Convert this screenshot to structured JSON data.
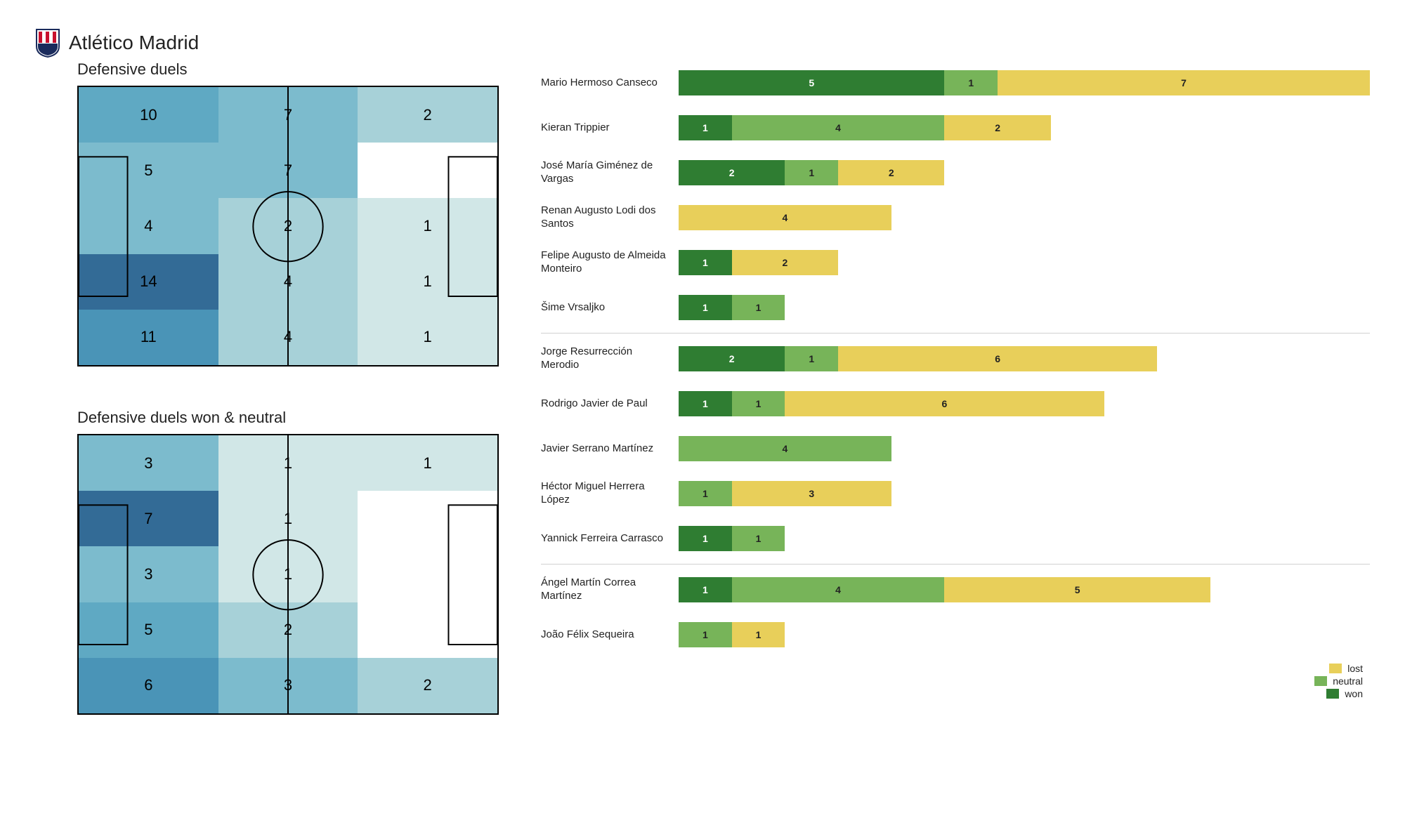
{
  "team": "Atlético Madrid",
  "colors": {
    "won": "#2f7d32",
    "neutral": "#77b459",
    "lost": "#e8cf5a",
    "heatmap_scale": [
      "#ffffff",
      "#d1e7e7",
      "#a7d1d8",
      "#7cbbcd",
      "#5fa9c3",
      "#4a94b7",
      "#3c7fa8",
      "#336b96"
    ]
  },
  "heatmaps": [
    {
      "title": "Defensive duels",
      "grid": [
        [
          10,
          7,
          2
        ],
        [
          5,
          7,
          null
        ],
        [
          4,
          2,
          1
        ],
        [
          14,
          4,
          1
        ],
        [
          11,
          4,
          1
        ]
      ],
      "cell_colors": [
        [
          "#5fa9c3",
          "#7cbbcd",
          "#a7d1d8"
        ],
        [
          "#7cbbcd",
          "#7cbbcd",
          "#ffffff"
        ],
        [
          "#7cbbcd",
          "#a7d1d8",
          "#d1e7e7"
        ],
        [
          "#336b96",
          "#a7d1d8",
          "#d1e7e7"
        ],
        [
          "#4a94b7",
          "#a7d1d8",
          "#d1e7e7"
        ]
      ]
    },
    {
      "title": "Defensive duels won & neutral",
      "grid": [
        [
          3,
          1,
          1
        ],
        [
          7,
          1,
          null
        ],
        [
          3,
          1,
          null
        ],
        [
          5,
          2,
          null
        ],
        [
          6,
          3,
          2
        ]
      ],
      "cell_colors": [
        [
          "#7cbbcd",
          "#d1e7e7",
          "#d1e7e7"
        ],
        [
          "#336b96",
          "#d1e7e7",
          "#ffffff"
        ],
        [
          "#7cbbcd",
          "#d1e7e7",
          "#ffffff"
        ],
        [
          "#5fa9c3",
          "#a7d1d8",
          "#ffffff"
        ],
        [
          "#4a94b7",
          "#7cbbcd",
          "#a7d1d8"
        ]
      ]
    }
  ],
  "bar_max": 13,
  "groups": [
    {
      "players": [
        {
          "name": "Mario Hermoso Canseco",
          "won": 5,
          "neutral": 1,
          "lost": 7
        },
        {
          "name": "Kieran Trippier",
          "won": 1,
          "neutral": 4,
          "lost": 2
        },
        {
          "name": "José María Giménez de Vargas",
          "won": 2,
          "neutral": 1,
          "lost": 2
        },
        {
          "name": "Renan Augusto Lodi dos Santos",
          "won": 0,
          "neutral": 0,
          "lost": 4
        },
        {
          "name": "Felipe Augusto de Almeida Monteiro",
          "won": 1,
          "neutral": 0,
          "lost": 2
        },
        {
          "name": "Šime Vrsaljko",
          "won": 1,
          "neutral": 1,
          "lost": 0
        }
      ]
    },
    {
      "players": [
        {
          "name": "Jorge Resurrección Merodio",
          "won": 2,
          "neutral": 1,
          "lost": 6
        },
        {
          "name": "Rodrigo Javier de Paul",
          "won": 1,
          "neutral": 1,
          "lost": 6
        },
        {
          "name": "Javier Serrano Martínez",
          "won": 0,
          "neutral": 4,
          "lost": 0
        },
        {
          "name": "Héctor Miguel Herrera López",
          "won": 0,
          "neutral": 1,
          "lost": 3
        },
        {
          "name": "Yannick Ferreira Carrasco",
          "won": 1,
          "neutral": 1,
          "lost": 0
        }
      ]
    },
    {
      "players": [
        {
          "name": "Ángel Martín Correa Martínez",
          "won": 1,
          "neutral": 4,
          "lost": 5
        },
        {
          "name": "João Félix Sequeira",
          "won": 0,
          "neutral": 1,
          "lost": 1
        }
      ]
    }
  ],
  "legend": [
    {
      "label": "lost",
      "color_key": "lost"
    },
    {
      "label": "neutral",
      "color_key": "neutral"
    },
    {
      "label": "won",
      "color_key": "won"
    }
  ]
}
